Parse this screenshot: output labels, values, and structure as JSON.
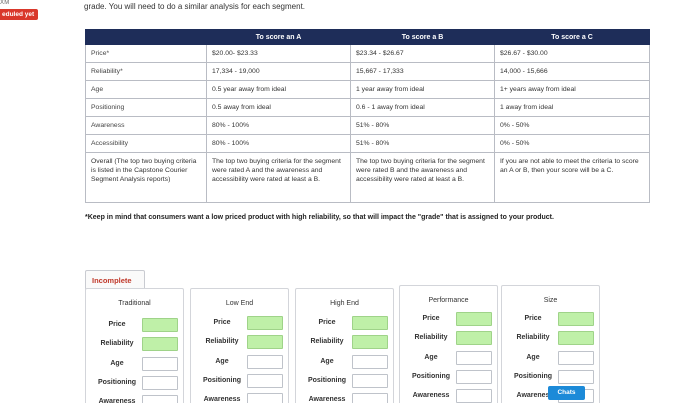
{
  "rail": {
    "top_label": "XM",
    "status_badge": "eduled yet"
  },
  "intro_text": "grade. You will need to do a similar analysis for each segment.",
  "criteria_table": {
    "headers": [
      "",
      "To score an A",
      "To score a B",
      "To score a C"
    ],
    "rows": [
      {
        "label": "Price*",
        "a": "$20.00- $23.33",
        "b": "$23.34 - $26.67",
        "c": "$26.67 - $30.00"
      },
      {
        "label": "Reliability*",
        "a": "17,334 - 19,000",
        "b": "15,667 - 17,333",
        "c": "14,000 - 15,666"
      },
      {
        "label": "Age",
        "a": "0.5 year away from ideal",
        "b": "1 year away from ideal",
        "c": "1+ years away from ideal"
      },
      {
        "label": "Positioning",
        "a": "0.5 away from ideal",
        "b": "0.6 - 1 away from ideal",
        "c": "1 away from ideal"
      },
      {
        "label": "Awareness",
        "a": "80% - 100%",
        "b": "51% - 80%",
        "c": "0% - 50%"
      },
      {
        "label": "Accessibility",
        "a": "80% - 100%",
        "b": "51% - 80%",
        "c": "0% - 50%"
      }
    ],
    "overall": {
      "label": "Overall (The top two buying criteria is listed in the Capstone Courier Segment Analysis reports)",
      "a": "The top two buying criteria for the segment were rated A and the awareness and accessibility were rated at least a B.",
      "b": "The top two buying criteria for the segment were rated B and the awareness and accessibility were rated at least a B.",
      "c": "If you are not able to meet the criteria to score an A or B, then your score will be a C."
    }
  },
  "footnote": "*Keep in mind that consumers want a low priced product with high reliability, so that will impact the \"grade\" that is assigned to your product.",
  "status": {
    "incomplete_label": "Incomplete"
  },
  "segments": [
    {
      "title": "Traditional",
      "items": [
        "Price",
        "Reliability",
        "Age",
        "Positioning",
        "Awareness"
      ],
      "filled": [
        true,
        true,
        false,
        false,
        false
      ]
    },
    {
      "title": "Low End",
      "items": [
        "Price",
        "Reliability",
        "Age",
        "Positioning",
        "Awareness"
      ],
      "filled": [
        true,
        true,
        false,
        false,
        false
      ]
    },
    {
      "title": "High End",
      "items": [
        "Price",
        "Reliability",
        "Age",
        "Positioning",
        "Awareness"
      ],
      "filled": [
        true,
        true,
        false,
        false,
        false
      ]
    },
    {
      "title": "Performance",
      "items": [
        "Price",
        "Reliability",
        "Age",
        "Positioning",
        "Awareness"
      ],
      "filled": [
        true,
        true,
        false,
        false,
        false
      ]
    },
    {
      "title": "Size",
      "items": [
        "Price",
        "Reliability",
        "Age",
        "Positioning",
        "Awarenes"
      ],
      "filled": [
        true,
        true,
        false,
        false,
        false
      ]
    }
  ],
  "chats_label": "Chats"
}
